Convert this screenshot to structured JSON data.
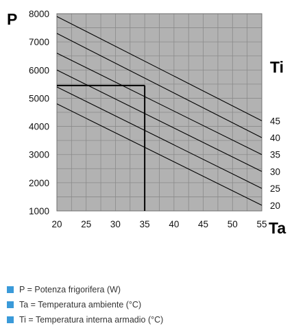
{
  "chart_data": {
    "type": "line",
    "y_letter": "P",
    "x_letter": "Ta",
    "series_letter": "Ti",
    "xlim": [
      20,
      55
    ],
    "ylim": [
      1000,
      8000
    ],
    "x_ticks": [
      "20",
      "25",
      "30",
      "35",
      "40",
      "45",
      "50",
      "55"
    ],
    "y_ticks": [
      "1000",
      "2000",
      "3000",
      "4000",
      "5000",
      "6000",
      "7000",
      "8000"
    ],
    "x_minor_step": 2.5,
    "y_minor_step": 500,
    "grid": true,
    "series": [
      {
        "name": "45",
        "x": [
          20,
          55
        ],
        "y": [
          7900,
          4200
        ]
      },
      {
        "name": "40",
        "x": [
          20,
          55
        ],
        "y": [
          7300,
          3600
        ]
      },
      {
        "name": "35",
        "x": [
          20,
          55
        ],
        "y": [
          6600,
          3000
        ]
      },
      {
        "name": "30",
        "x": [
          20,
          55
        ],
        "y": [
          6000,
          2400
        ]
      },
      {
        "name": "25",
        "x": [
          20,
          55
        ],
        "y": [
          5400,
          1800
        ]
      },
      {
        "name": "20",
        "x": [
          20,
          55
        ],
        "y": [
          4800,
          1200
        ]
      }
    ],
    "reference": {
      "x": 35,
      "y": 5450
    },
    "plot_color": "#b2b2b2",
    "line_color": "#000000"
  },
  "legend": {
    "marker_color": "#3a9ad9",
    "items": [
      "P = Potenza frigorifera (W)",
      "Ta = Temperatura ambiente (°C)",
      "Ti = Temperatura interna armadio (°C)"
    ]
  }
}
